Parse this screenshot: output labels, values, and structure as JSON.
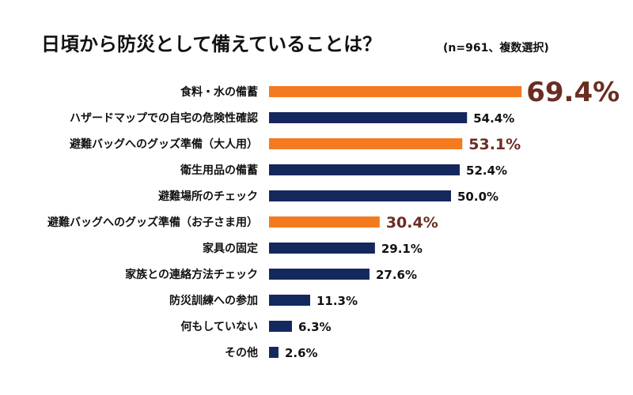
{
  "title": "日頃から防災として備えていることは？",
  "subtitle": "(n=961、複数選択)",
  "chart_data": {
    "type": "bar",
    "orientation": "horizontal",
    "title": "日頃から防災として備えていることは？",
    "subtitle": "(n=961、複数選択)",
    "unit": "%",
    "xlim": [
      0,
      100
    ],
    "categories": [
      "食料・水の備蓄",
      "ハザードマップでの自宅の危険性確認",
      "避難バッグへのグッズ準備（大人用）",
      "衛生用品の備蓄",
      "避難場所のチェック",
      "避難バッグへのグッズ準備（お子さま用）",
      "家具の固定",
      "家族との連絡方法チェック",
      "防災訓練への参加",
      "何もしていない",
      "その他"
    ],
    "values": [
      69.4,
      54.4,
      53.1,
      52.4,
      50.0,
      30.4,
      29.1,
      27.6,
      11.3,
      6.3,
      2.6
    ],
    "value_labels": [
      "69.4%",
      "54.4%",
      "53.1%",
      "52.4%",
      "50.0%",
      "30.4%",
      "29.1%",
      "27.6%",
      "11.3%",
      "6.3%",
      "2.6%"
    ],
    "highlighted": [
      true,
      false,
      true,
      false,
      false,
      true,
      false,
      false,
      false,
      false,
      false
    ],
    "colors": {
      "bar": "#14285e",
      "highlight_bar": "#f47a20",
      "label": "#111111",
      "highlight_label": "#6b2d22"
    }
  }
}
